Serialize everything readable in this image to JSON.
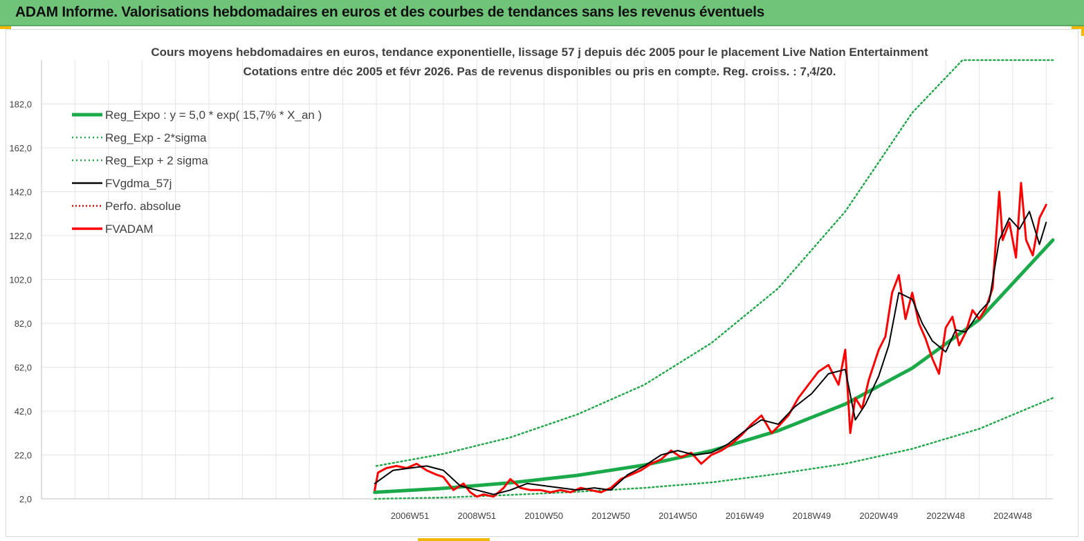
{
  "header": {
    "title": "ADAM Informe. Valorisations hebdomadaires en euros et des courbes de tendances sans les revenus éventuels"
  },
  "colors": {
    "banner": "#70c47a",
    "accent_corner": "#f2b800",
    "reg_expo": "#1aaa4a",
    "sigma": "#22a84a",
    "fvgdma": "#000000",
    "perfo": "#d40000",
    "fvadam": "#ff0000"
  },
  "chart_data": {
    "type": "line",
    "title": "Cours moyens hebdomadaires en euros, tendance exponentielle, lissage 57 j depuis déc 2005  pour le placement Live  Nation Entertainment",
    "subtitle": "Cotations entre déc 2005 et févr 2026. Pas de revenus disponibles ou pris en compte. Reg. croiss. : 7,4/20.",
    "xlabel": "",
    "ylabel": "",
    "ylim": [
      2,
      202
    ],
    "xlim": [
      1996.0,
      2026.2
    ],
    "y_ticks": [
      "2,0",
      "22,0",
      "42,0",
      "62,0",
      "82,0",
      "102,0",
      "122,0",
      "142,0",
      "162,0",
      "182,0"
    ],
    "y_tick_values": [
      2,
      22,
      42,
      62,
      82,
      102,
      122,
      142,
      162,
      182
    ],
    "x_ticks": [
      "2006W51",
      "2008W51",
      "2010W50",
      "2012W50",
      "2014W50",
      "2016W49",
      "2018W49",
      "2020W49",
      "2022W48",
      "2024W48"
    ],
    "x_tick_values": [
      2007.0,
      2009.0,
      2011.0,
      2013.0,
      2015.0,
      2017.0,
      2019.0,
      2021.0,
      2023.0,
      2025.0
    ],
    "grid": true,
    "legend_position": "top-left",
    "series": [
      {
        "name": "Reg_Expo : y = 5,0 * exp( 15,7% *  X_an )",
        "style": "solid-thick",
        "x": [
          2005.95,
          2008,
          2010,
          2012,
          2014,
          2016,
          2018,
          2020,
          2022,
          2024,
          2026.2
        ],
        "values": [
          5.0,
          6.8,
          9.3,
          12.7,
          17.4,
          23.9,
          33.1,
          45.2,
          61.6,
          83.7,
          120.0
        ]
      },
      {
        "name": "Reg_Exp - 2*sigma",
        "style": "dotted",
        "x": [
          2005.95,
          2008,
          2010,
          2012,
          2014,
          2016,
          2018,
          2020,
          2022,
          2024,
          2026.2
        ],
        "values": [
          2.0,
          2.6,
          3.8,
          5.2,
          7.0,
          9.5,
          13.4,
          18.0,
          24.8,
          33.9,
          48.0
        ]
      },
      {
        "name": "Reg_Exp + 2 sigma",
        "style": "dotted",
        "x": [
          2006.0,
          2008,
          2010,
          2012,
          2014,
          2016,
          2018,
          2020,
          2022,
          2023.5,
          2026.2
        ],
        "values": [
          17.0,
          22.5,
          30.0,
          40.5,
          54.0,
          73.0,
          98.0,
          133.0,
          178.0,
          202.0,
          202.0
        ]
      },
      {
        "name": "FVgdma_57j",
        "style": "solid-thin",
        "x": [
          2005.95,
          2006.5,
          2007.0,
          2007.5,
          2008.0,
          2008.5,
          2009.0,
          2009.5,
          2010.0,
          2010.5,
          2011.0,
          2011.5,
          2012.0,
          2012.5,
          2013.0,
          2013.5,
          2014.0,
          2014.5,
          2015.0,
          2015.5,
          2016.0,
          2016.5,
          2017.0,
          2017.5,
          2018.0,
          2018.5,
          2019.0,
          2019.5,
          2020.0,
          2020.3,
          2020.6,
          2021.0,
          2021.3,
          2021.6,
          2022.0,
          2022.3,
          2022.6,
          2023.0,
          2023.3,
          2023.6,
          2024.0,
          2024.3,
          2024.6,
          2024.9,
          2025.2,
          2025.5,
          2025.8,
          2026.0
        ],
        "values": [
          9,
          15,
          16,
          17,
          15,
          8,
          6,
          4,
          6,
          9,
          8,
          7,
          6,
          7,
          6,
          13,
          17,
          22,
          24,
          22,
          23,
          27,
          33,
          38,
          36,
          44,
          50,
          59,
          61,
          38,
          45,
          58,
          72,
          96,
          93,
          82,
          74,
          69,
          79,
          78,
          87,
          92,
          120,
          130,
          125,
          133,
          118,
          128
        ]
      },
      {
        "name": "Perfo. absolue",
        "style": "dotted",
        "x": [
          2005.95,
          2006.5,
          2007.0,
          2007.5,
          2008.0,
          2008.5,
          2009.0,
          2009.5,
          2010.0,
          2010.5,
          2011.0,
          2011.5,
          2012.0,
          2012.5,
          2013.0,
          2013.5,
          2014.0,
          2014.5,
          2015.0,
          2015.5,
          2016.0,
          2016.5,
          2017.0,
          2017.5,
          2018.0,
          2018.5,
          2019.0,
          2019.5,
          2020.0,
          2020.3,
          2020.6,
          2021.0,
          2021.3,
          2021.6,
          2022.0,
          2022.3,
          2022.6,
          2023.0,
          2023.3,
          2023.6,
          2024.0,
          2024.3,
          2024.6,
          2024.9,
          2025.2,
          2025.5,
          2025.8,
          2026.0
        ],
        "values": [
          9,
          15,
          16,
          17,
          15,
          8,
          6,
          4,
          6,
          9,
          8,
          7,
          6,
          7,
          6,
          13,
          17,
          22,
          24,
          22,
          23,
          27,
          33,
          38,
          36,
          44,
          50,
          59,
          61,
          38,
          45,
          58,
          72,
          96,
          93,
          82,
          74,
          69,
          79,
          78,
          87,
          92,
          120,
          130,
          125,
          133,
          118,
          128
        ]
      },
      {
        "name": "FVADAM",
        "style": "solid",
        "x": [
          2005.95,
          2006.05,
          2006.3,
          2006.6,
          2006.9,
          2007.2,
          2007.5,
          2007.8,
          2008.0,
          2008.3,
          2008.6,
          2008.8,
          2009.0,
          2009.2,
          2009.5,
          2009.8,
          2010.0,
          2010.3,
          2010.6,
          2010.9,
          2011.2,
          2011.5,
          2011.8,
          2012.1,
          2012.4,
          2012.7,
          2013.0,
          2013.3,
          2013.6,
          2013.9,
          2014.2,
          2014.5,
          2014.8,
          2015.1,
          2015.4,
          2015.7,
          2016.0,
          2016.3,
          2016.6,
          2016.9,
          2017.2,
          2017.5,
          2017.8,
          2018.0,
          2018.3,
          2018.6,
          2018.9,
          2019.2,
          2019.5,
          2019.8,
          2020.0,
          2020.15,
          2020.3,
          2020.5,
          2020.7,
          2021.0,
          2021.2,
          2021.4,
          2021.6,
          2021.8,
          2022.0,
          2022.2,
          2022.4,
          2022.6,
          2022.8,
          2023.0,
          2023.2,
          2023.4,
          2023.6,
          2023.8,
          2024.0,
          2024.2,
          2024.4,
          2024.5,
          2024.6,
          2024.7,
          2024.9,
          2025.1,
          2025.25,
          2025.4,
          2025.6,
          2025.8,
          2026.0
        ],
        "values": [
          6,
          14,
          16,
          17,
          16,
          18,
          15,
          13,
          12,
          6,
          9,
          5,
          3,
          4,
          3,
          7,
          11,
          7,
          6,
          6,
          5,
          6,
          5,
          7,
          6,
          5,
          7,
          11,
          13,
          15,
          18,
          20,
          24,
          21,
          23,
          18,
          22,
          24,
          27,
          31,
          36,
          40,
          32,
          35,
          40,
          48,
          54,
          60,
          63,
          54,
          70,
          32,
          48,
          43,
          56,
          70,
          76,
          96,
          104,
          84,
          96,
          82,
          75,
          66,
          59,
          80,
          85,
          72,
          78,
          88,
          84,
          89,
          98,
          120,
          142,
          120,
          128,
          112,
          146,
          120,
          113,
          130,
          136
        ]
      }
    ]
  }
}
